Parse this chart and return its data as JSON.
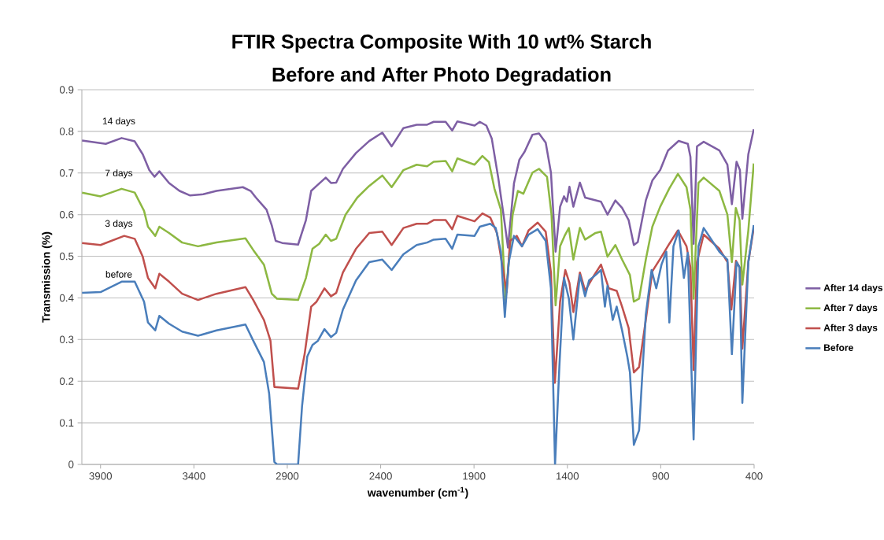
{
  "chart_data": {
    "type": "line",
    "title": "FTIR Spectra Composite With 10 wt% Starch",
    "subtitle": "Before and After Photo Degradation",
    "xlabel": "wavenumber (cm$^{-1}$)",
    "ylabel": "Transmission (%)",
    "xlim": [
      4000,
      400
    ],
    "xticks": [
      3900,
      3400,
      2900,
      2400,
      1900,
      1400,
      900,
      400
    ],
    "ylim": [
      0,
      0.9
    ],
    "yticks": [
      0,
      0.1,
      0.2,
      0.3,
      0.4,
      0.5,
      0.6,
      0.7,
      0.8,
      0.9
    ],
    "grid": "y",
    "legend": "right",
    "annotations": [
      "14 days",
      "7 days",
      "3 days",
      "before"
    ],
    "series": [
      {
        "name": "After 14 days",
        "color": "#7e5fa4",
        "x": [
          3999,
          3872,
          3787,
          3717,
          3674,
          3639,
          3611,
          3585,
          3533,
          3477,
          3420,
          3350,
          3279,
          3138,
          3096,
          3068,
          3011,
          2983,
          2962,
          2927,
          2842,
          2800,
          2772,
          2743,
          2694,
          2666,
          2638,
          2602,
          2532,
          2461,
          2391,
          2341,
          2278,
          2207,
          2151,
          2116,
          2052,
          2017,
          1989,
          1897,
          1869,
          1834,
          1805,
          1770,
          1742,
          1718,
          1686,
          1657,
          1629,
          1587,
          1552,
          1516,
          1488,
          1463,
          1439,
          1418,
          1403,
          1389,
          1368,
          1333,
          1305,
          1220,
          1185,
          1143,
          1107,
          1072,
          1044,
          1023,
          980,
          945,
          903,
          861,
          804,
          755,
          741,
          724,
          706,
          670,
          586,
          543,
          519,
          494,
          476,
          463,
          431,
          402
        ],
        "values": [
          0.778,
          0.77,
          0.784,
          0.776,
          0.745,
          0.707,
          0.691,
          0.704,
          0.676,
          0.657,
          0.646,
          0.649,
          0.657,
          0.666,
          0.657,
          0.641,
          0.612,
          0.574,
          0.537,
          0.532,
          0.528,
          0.587,
          0.657,
          0.669,
          0.689,
          0.676,
          0.677,
          0.71,
          0.748,
          0.777,
          0.797,
          0.764,
          0.808,
          0.816,
          0.816,
          0.823,
          0.823,
          0.802,
          0.824,
          0.814,
          0.823,
          0.814,
          0.783,
          0.688,
          0.6,
          0.521,
          0.675,
          0.732,
          0.751,
          0.792,
          0.795,
          0.773,
          0.701,
          0.511,
          0.619,
          0.644,
          0.631,
          0.667,
          0.619,
          0.677,
          0.641,
          0.631,
          0.6,
          0.634,
          0.616,
          0.587,
          0.527,
          0.534,
          0.634,
          0.682,
          0.707,
          0.754,
          0.777,
          0.77,
          0.739,
          0.53,
          0.764,
          0.775,
          0.754,
          0.72,
          0.625,
          0.727,
          0.707,
          0.59,
          0.745,
          0.805
        ]
      },
      {
        "name": "After 7 days",
        "color": "#8db842",
        "x": [
          3999,
          3900,
          3787,
          3717,
          3667,
          3646,
          3607,
          3585,
          3533,
          3463,
          3378,
          3279,
          3124,
          3082,
          3025,
          2983,
          2955,
          2842,
          2800,
          2765,
          2729,
          2694,
          2666,
          2638,
          2588,
          2525,
          2461,
          2391,
          2341,
          2278,
          2207,
          2151,
          2116,
          2052,
          2017,
          1989,
          1897,
          1855,
          1820,
          1791,
          1756,
          1731,
          1693,
          1665,
          1636,
          1587,
          1552,
          1509,
          1485,
          1463,
          1439,
          1415,
          1392,
          1368,
          1333,
          1305,
          1249,
          1220,
          1185,
          1143,
          1107,
          1065,
          1044,
          1016,
          980,
          945,
          903,
          854,
          808,
          762,
          741,
          724,
          698,
          670,
          586,
          543,
          519,
          498,
          478,
          463,
          431,
          402
        ],
        "values": [
          0.653,
          0.644,
          0.662,
          0.653,
          0.609,
          0.571,
          0.549,
          0.571,
          0.556,
          0.533,
          0.524,
          0.533,
          0.543,
          0.515,
          0.48,
          0.41,
          0.398,
          0.395,
          0.448,
          0.518,
          0.53,
          0.552,
          0.537,
          0.542,
          0.6,
          0.641,
          0.669,
          0.694,
          0.666,
          0.707,
          0.72,
          0.716,
          0.727,
          0.729,
          0.704,
          0.735,
          0.72,
          0.741,
          0.726,
          0.663,
          0.612,
          0.395,
          0.6,
          0.657,
          0.65,
          0.701,
          0.71,
          0.691,
          0.6,
          0.382,
          0.524,
          0.549,
          0.568,
          0.492,
          0.568,
          0.54,
          0.556,
          0.559,
          0.499,
          0.527,
          0.492,
          0.455,
          0.391,
          0.398,
          0.492,
          0.571,
          0.619,
          0.663,
          0.698,
          0.666,
          0.612,
          0.398,
          0.676,
          0.689,
          0.657,
          0.6,
          0.486,
          0.616,
          0.587,
          0.432,
          0.562,
          0.723
        ]
      },
      {
        "name": "After 3 days",
        "color": "#c0504d",
        "x": [
          3999,
          3900,
          3773,
          3717,
          3674,
          3646,
          3607,
          3585,
          3533,
          3463,
          3378,
          3279,
          3124,
          3082,
          3025,
          2990,
          2969,
          2842,
          2807,
          2772,
          2743,
          2701,
          2666,
          2638,
          2602,
          2532,
          2461,
          2391,
          2341,
          2278,
          2207,
          2151,
          2116,
          2052,
          2017,
          1989,
          1897,
          1855,
          1813,
          1777,
          1742,
          1725,
          1707,
          1671,
          1643,
          1608,
          1559,
          1516,
          1488,
          1467,
          1439,
          1411,
          1389,
          1368,
          1333,
          1305,
          1256,
          1220,
          1178,
          1136,
          1107,
          1072,
          1044,
          1016,
          980,
          945,
          896,
          854,
          808,
          762,
          741,
          724,
          706,
          670,
          586,
          543,
          522,
          497,
          477,
          463,
          431,
          402
        ],
        "values": [
          0.532,
          0.527,
          0.549,
          0.542,
          0.499,
          0.448,
          0.423,
          0.458,
          0.439,
          0.41,
          0.395,
          0.41,
          0.426,
          0.395,
          0.347,
          0.297,
          0.186,
          0.182,
          0.265,
          0.379,
          0.391,
          0.423,
          0.404,
          0.412,
          0.461,
          0.518,
          0.556,
          0.559,
          0.527,
          0.568,
          0.578,
          0.578,
          0.587,
          0.587,
          0.565,
          0.597,
          0.584,
          0.603,
          0.593,
          0.556,
          0.461,
          0.414,
          0.537,
          0.549,
          0.524,
          0.562,
          0.581,
          0.559,
          0.461,
          0.196,
          0.391,
          0.467,
          0.436,
          0.366,
          0.461,
          0.417,
          0.455,
          0.48,
          0.423,
          0.417,
          0.379,
          0.328,
          0.221,
          0.234,
          0.347,
          0.464,
          0.499,
          0.53,
          0.562,
          0.524,
          0.473,
          0.227,
          0.486,
          0.552,
          0.518,
          0.486,
          0.372,
          0.489,
          0.473,
          0.278,
          0.486,
          0.568
        ]
      },
      {
        "name": "Before",
        "color": "#4a7ebb",
        "x": [
          3999,
          3900,
          3787,
          3717,
          3667,
          3646,
          3607,
          3585,
          3533,
          3463,
          3378,
          3279,
          3124,
          3082,
          3025,
          2997,
          2969,
          2955,
          2842,
          2821,
          2793,
          2765,
          2736,
          2701,
          2666,
          2638,
          2602,
          2532,
          2461,
          2391,
          2341,
          2278,
          2207,
          2151,
          2116,
          2052,
          2017,
          1989,
          1897,
          1869,
          1813,
          1784,
          1756,
          1735,
          1714,
          1686,
          1643,
          1608,
          1559,
          1516,
          1488,
          1466,
          1443,
          1418,
          1392,
          1368,
          1333,
          1305,
          1284,
          1249,
          1220,
          1199,
          1185,
          1157,
          1136,
          1107,
          1079,
          1065,
          1044,
          1016,
          980,
          949,
          924,
          896,
          870,
          854,
          832,
          804,
          776,
          755,
          724,
          698,
          670,
          586,
          543,
          519,
          494,
          478,
          463,
          431,
          402
        ],
        "values": [
          0.412,
          0.414,
          0.439,
          0.439,
          0.391,
          0.341,
          0.322,
          0.357,
          0.338,
          0.319,
          0.309,
          0.322,
          0.336,
          0.297,
          0.246,
          0.17,
          0.006,
          0,
          0,
          0.139,
          0.259,
          0.287,
          0.297,
          0.325,
          0.306,
          0.316,
          0.372,
          0.442,
          0.486,
          0.492,
          0.467,
          0.505,
          0.527,
          0.533,
          0.54,
          0.542,
          0.518,
          0.552,
          0.549,
          0.571,
          0.578,
          0.568,
          0.511,
          0.354,
          0.486,
          0.549,
          0.524,
          0.552,
          0.565,
          0.537,
          0.423,
          0,
          0.234,
          0.448,
          0.398,
          0.3,
          0.455,
          0.404,
          0.442,
          0.455,
          0.467,
          0.379,
          0.429,
          0.347,
          0.379,
          0.322,
          0.259,
          0.221,
          0.047,
          0.082,
          0.36,
          0.467,
          0.423,
          0.48,
          0.511,
          0.341,
          0.524,
          0.562,
          0.448,
          0.508,
          0.06,
          0.524,
          0.568,
          0.511,
          0.492,
          0.265,
          0.486,
          0.473,
          0.148,
          0.486,
          0.575
        ]
      }
    ]
  }
}
